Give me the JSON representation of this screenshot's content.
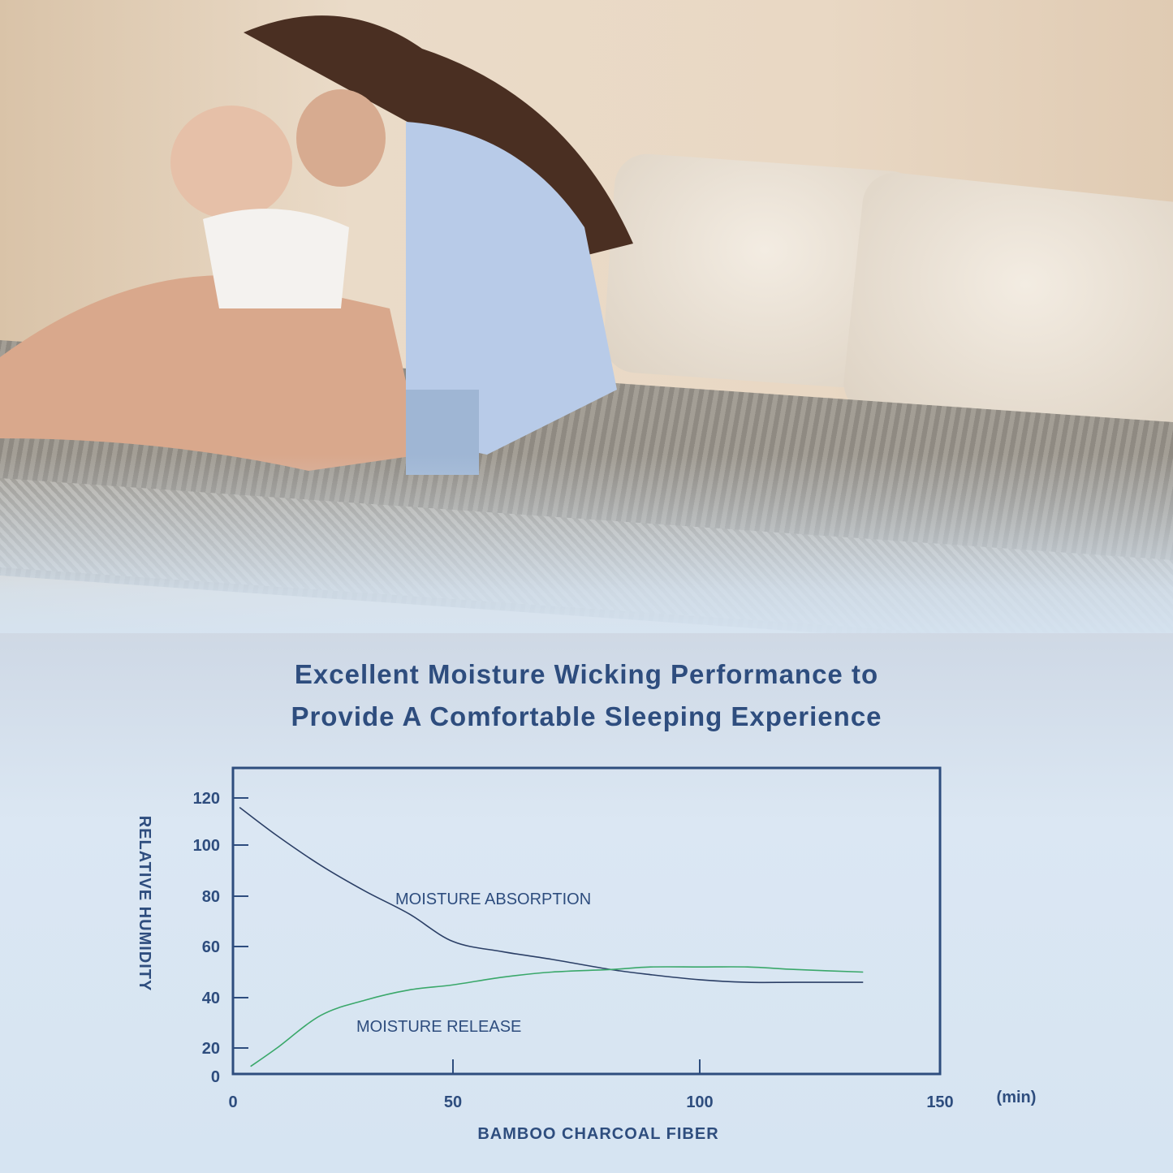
{
  "heading": {
    "line1": "Excellent Moisture Wicking Performance to",
    "line2": "Provide A Comfortable Sleeping Experience"
  },
  "chart_data": {
    "type": "line",
    "xlabel": "BAMBOO CHARCOAL FIBER",
    "xunit": "(min)",
    "ylabel": "RELATIVE HUMIDITY",
    "xlim": [
      0,
      150
    ],
    "ylim": [
      0,
      130
    ],
    "xticks": [
      "0",
      "50",
      "100",
      "150"
    ],
    "yticks": [
      "0",
      "20",
      "40",
      "60",
      "80",
      "100",
      "120"
    ],
    "grid": false,
    "series": [
      {
        "name": "MOISTURE ABSORPTION",
        "color": "#2b3f66",
        "x": [
          1.5,
          10,
          20,
          30,
          40,
          50,
          60,
          70,
          82,
          90,
          100,
          110,
          120,
          134
        ],
        "y": [
          116,
          104,
          92,
          82,
          73,
          62,
          58,
          55,
          51,
          49,
          47,
          46,
          46,
          46
        ]
      },
      {
        "name": "MOISTURE RELEASE",
        "color": "#3aa86a",
        "x": [
          4,
          10,
          20,
          30,
          40,
          50,
          60,
          70,
          82,
          90,
          100,
          110,
          120,
          134
        ],
        "y": [
          7,
          20,
          33,
          39,
          43,
          45,
          48,
          50,
          51,
          52,
          52,
          52,
          51,
          50
        ]
      }
    ]
  }
}
